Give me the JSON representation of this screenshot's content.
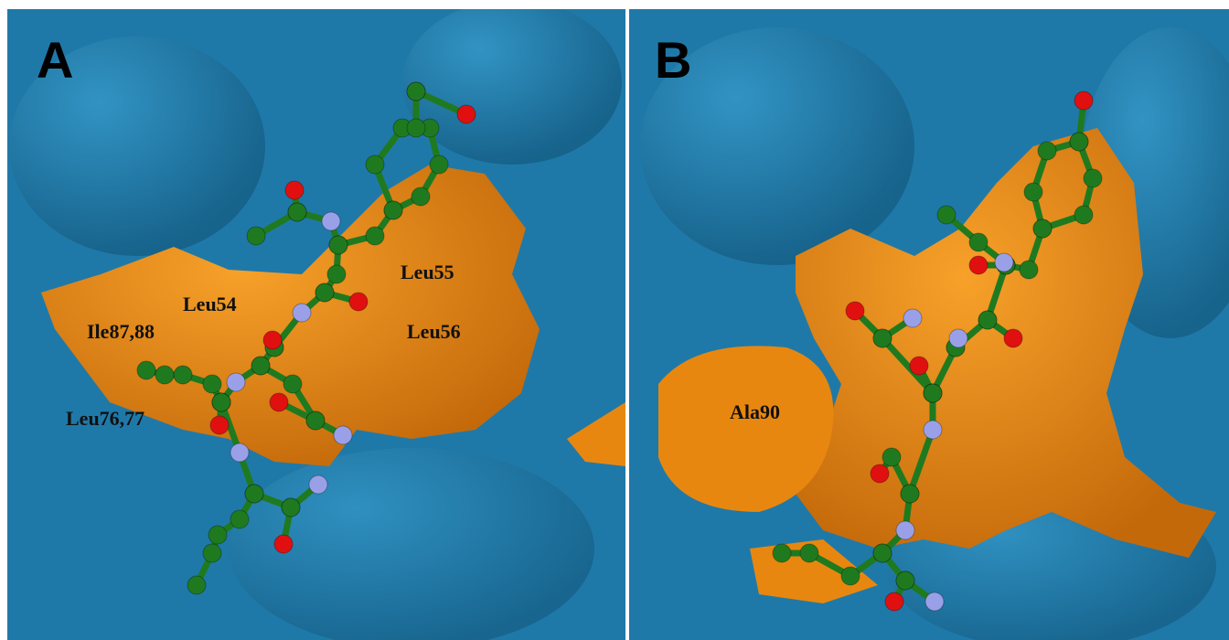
{
  "panels": [
    {
      "label": "A",
      "residues": [
        "Leu54",
        "Leu55",
        "Ile87,88",
        "Leu56",
        "Leu76,77"
      ]
    },
    {
      "label": "B",
      "residues": [
        "Ala90"
      ]
    }
  ]
}
